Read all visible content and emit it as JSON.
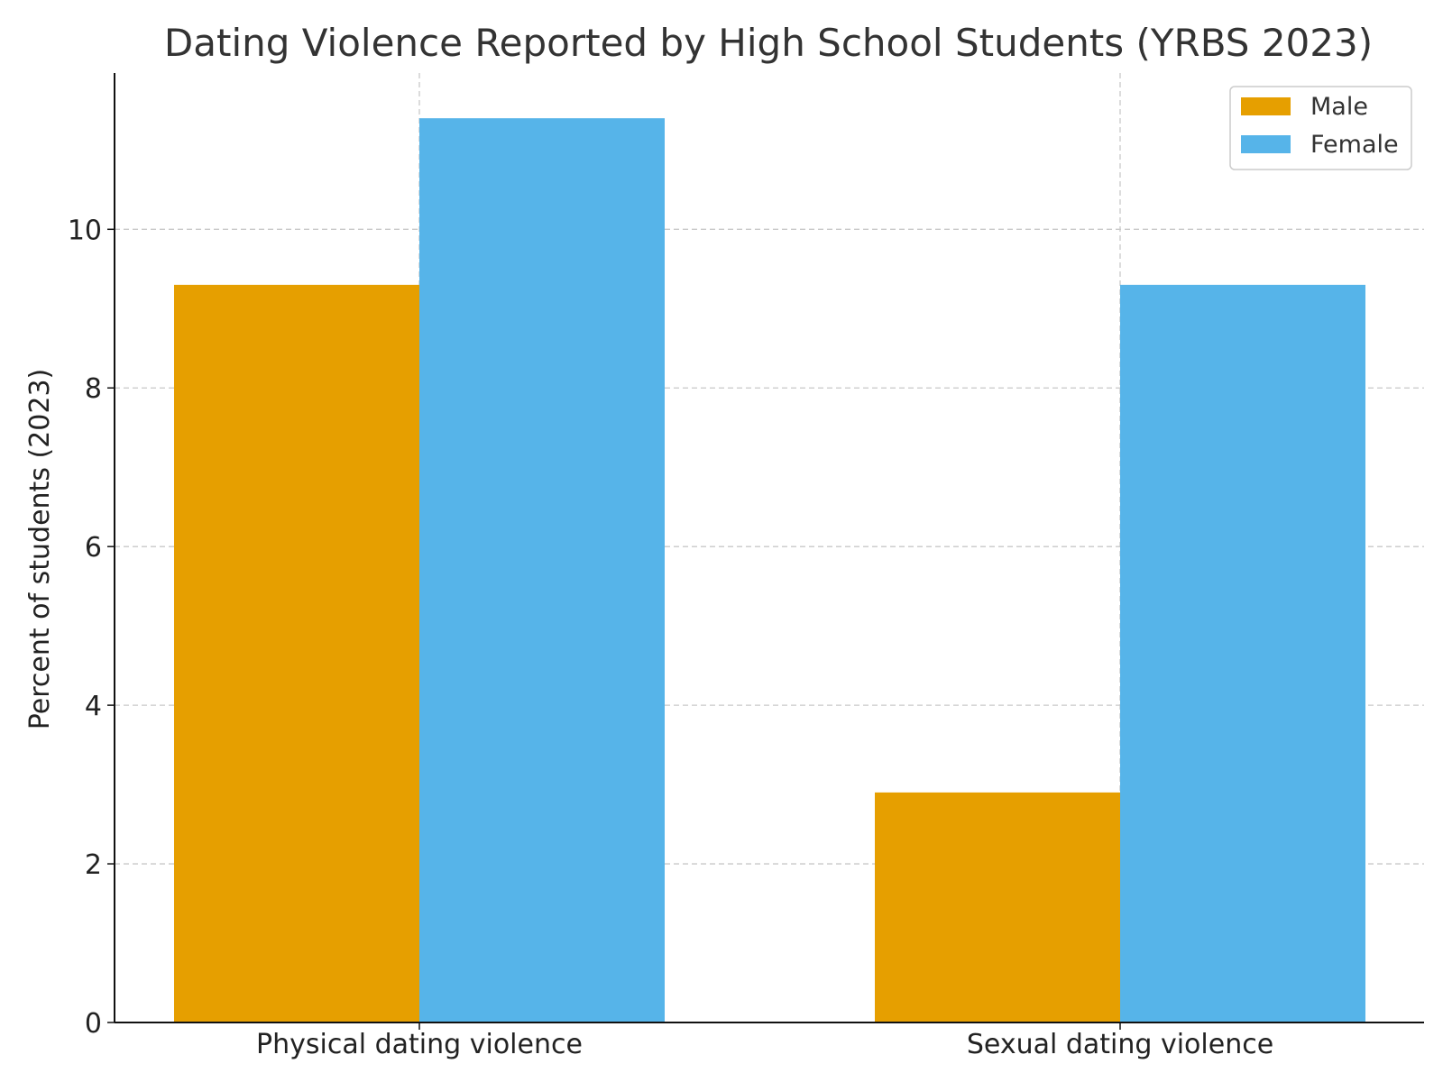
{
  "chart_data": {
    "type": "bar",
    "title": "Dating Violence Reported by High School Students (YRBS 2023)",
    "xlabel": "",
    "ylabel": "Percent of students (2023)",
    "categories": [
      "Physical dating violence",
      "Sexual dating violence"
    ],
    "series": [
      {
        "name": "Male",
        "values": [
          9.3,
          2.9
        ],
        "color": "#E69F00"
      },
      {
        "name": "Female",
        "values": [
          11.4,
          9.3
        ],
        "color": "#56B4E9"
      }
    ],
    "ylim": [
      0,
      11.97
    ],
    "yticks": [
      0,
      2,
      4,
      6,
      8,
      10
    ],
    "grid": true,
    "legend_position": "top-right"
  }
}
